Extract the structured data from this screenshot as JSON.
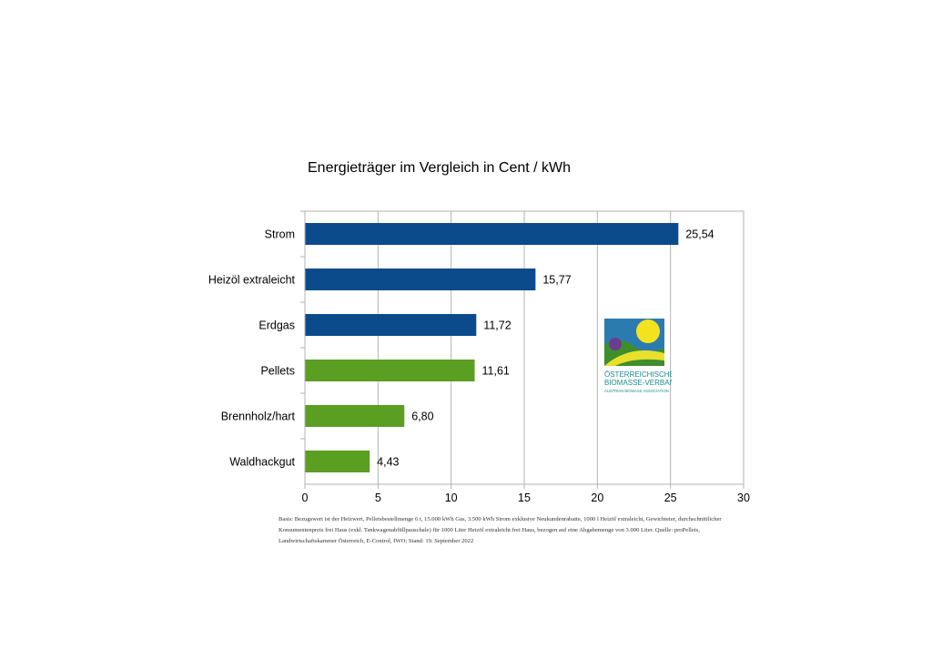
{
  "chart_data": {
    "type": "bar",
    "orientation": "horizontal",
    "title": "Energieträger im Vergleich in Cent / kWh",
    "categories": [
      "Strom",
      "Heizöl extraleicht",
      "Erdgas",
      "Pellets",
      "Brennholz/hart",
      "Waldhackgut"
    ],
    "values": [
      25.54,
      15.77,
      11.72,
      11.61,
      6.8,
      4.43
    ],
    "value_labels": [
      "25,54",
      "15,77",
      "11,72",
      "11,61",
      "6,80",
      "4,43"
    ],
    "bar_colors": [
      "#0b4b8c",
      "#0b4b8c",
      "#0b4b8c",
      "#5a9e22",
      "#5a9e22",
      "#5a9e22"
    ],
    "xlim": [
      0,
      30
    ],
    "xticks": [
      0,
      5,
      10,
      15,
      20,
      25,
      30
    ],
    "grid": true
  },
  "logo": {
    "line1": "ÖSTERREICHISCHER",
    "line2": "BIOMASSE-VERBAND",
    "line3": "AUSTRIAN BIOMASS ASSOCIATION"
  },
  "footnote": {
    "line1": "Basis: Bezugswert ist der Heizwert, Pelletsbestellmenge 6 t, 15.000 kWh Gas, 3.500 kWh Strom exklusive Neukundenrabatte, 1000 l Heizöl extraleicht, Gewichteter, durchschnittlicher",
    "line2": "Konsumentenpreis frei Haus (exkl. Tankwagenabfüllpauschale) für 1000 Liter Heizöl extraleicht frei Haus, bezogen auf eine Abgabemenge von 3.000 Liter. Quelle: proPellets,",
    "line3": "Landwirtschaftskammer Österreich, E-Control, IWO; Stand: 19. September 2022"
  }
}
